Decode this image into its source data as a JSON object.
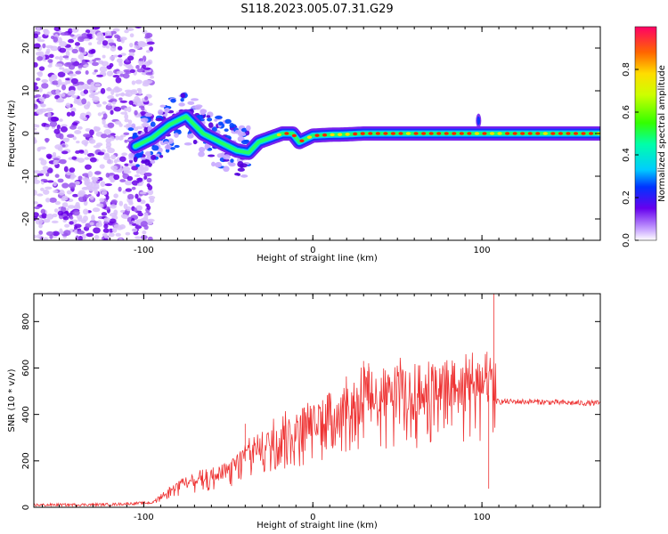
{
  "title": "S118.2023.005.07.31.G29",
  "chart_data": [
    {
      "type": "heatmap",
      "xlabel": "Height of straight line (km)",
      "ylabel": "Frequency (Hz)",
      "xlim": [
        -165,
        170
      ],
      "ylim": [
        -25,
        25
      ],
      "xticks": [
        -100,
        0,
        100
      ],
      "xtick_labels": [
        "-100",
        "0",
        "100"
      ],
      "yticks": [
        -20,
        -10,
        0,
        10,
        20
      ],
      "ytick_labels": [
        "-20",
        "-10",
        "0",
        "10",
        "20"
      ],
      "colorbar": {
        "label": "Normalized spectral amplitude",
        "range": [
          0,
          1
        ],
        "ticks": [
          "0.0",
          "0.2",
          "0.4",
          "0.6",
          "0.8"
        ]
      },
      "ridge": {
        "x": [
          -105,
          -95,
          -85,
          -75,
          -65,
          -55,
          -45,
          -38,
          -32,
          -25,
          -18,
          -12,
          -8,
          0,
          10,
          20,
          30,
          40,
          50,
          60,
          70,
          80,
          90,
          98,
          105,
          120,
          140,
          160,
          170
        ],
        "y": [
          -3,
          -1,
          2,
          4,
          0,
          -2,
          -4,
          -4.5,
          -2,
          -1,
          0,
          0,
          -2,
          -0.5,
          -0.3,
          -0.2,
          0,
          0,
          0,
          0,
          0,
          0,
          0,
          0,
          0,
          0,
          0,
          0,
          0
        ]
      },
      "noise_region": {
        "x": [
          -165,
          -100
        ],
        "y": [
          -25,
          25
        ]
      },
      "grid": false
    },
    {
      "type": "line",
      "xlabel": "Height of straight line (km)",
      "ylabel": "SNR (10 * v/v)",
      "xlim": [
        -165,
        170
      ],
      "ylim": [
        0,
        920
      ],
      "xticks": [
        -100,
        0,
        100
      ],
      "xtick_labels": [
        "-100",
        "0",
        "100"
      ],
      "yticks": [
        0,
        200,
        400,
        600,
        800
      ],
      "ytick_labels": [
        "0",
        "200",
        "400",
        "600",
        "800"
      ],
      "series": [
        {
          "color": "#ee3333",
          "envelope_x": [
            -165,
            -120,
            -95,
            -85,
            -75,
            -60,
            -50,
            -42,
            -35,
            -25,
            -15,
            0,
            10,
            20,
            30,
            40,
            50,
            60,
            70,
            80,
            90,
            100,
            105,
            107,
            110,
            130,
            150,
            170
          ],
          "envelope_y": [
            10,
            12,
            20,
            60,
            100,
            120,
            140,
            190,
            220,
            270,
            290,
            330,
            370,
            390,
            450,
            440,
            450,
            450,
            460,
            470,
            470,
            490,
            480,
            460,
            455,
            455,
            450,
            448
          ],
          "spikes": [
            [
              -40,
              360
            ],
            [
              30,
              630
            ],
            [
              33,
              620
            ],
            [
              103,
              670
            ],
            [
              107,
              920
            ],
            [
              104,
              80
            ]
          ]
        }
      ],
      "grid": false
    }
  ]
}
